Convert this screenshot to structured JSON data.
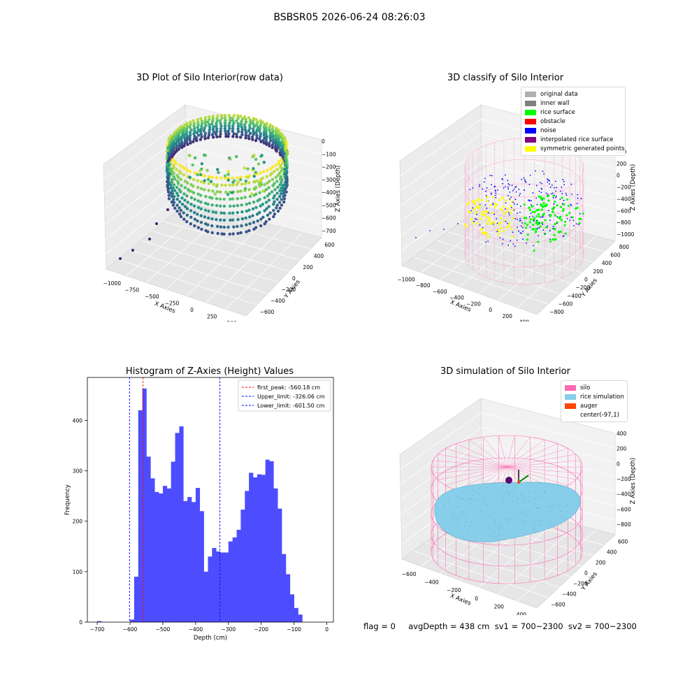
{
  "figure_title": "BSBSR05 2026-06-24 08:26:03",
  "status": {
    "text": "flag = 0     avgDepth = 438 cm  sv1 = 700~2300  sv2 = 700~2300"
  },
  "colors": {
    "histogram_bar": "#4d4dff",
    "first_peak_line": "#ff0000",
    "limit_lines": "#0000ff",
    "silo_wire": "#ff69b4",
    "rice_simulation": "#87ceeb"
  },
  "chart_data": [
    {
      "type": "scatter",
      "title": "3D Plot of Silo Interior(row data)",
      "projection": "3d",
      "colormap": "viridis",
      "xlabel": "X Axies",
      "ylabel": "Y Axies",
      "zlabel": "Z Axies (Depth)",
      "x_ticks": [
        "−1000",
        "−750",
        "−500",
        "−250",
        "0",
        "250",
        "500"
      ],
      "y_ticks": [
        "−600",
        "−400",
        "−200",
        "0",
        "200",
        "400",
        "600"
      ],
      "z_ticks": [
        "0",
        "−100",
        "−200",
        "−300",
        "−400",
        "−500",
        "−600",
        "−700"
      ],
      "xlim": [
        -1100,
        550
      ],
      "ylim": [
        -650,
        650
      ],
      "zlim": [
        -750,
        0
      ]
    },
    {
      "type": "scatter",
      "title": "3D classify of Silo Interior",
      "projection": "3d",
      "xlabel": "X Axies",
      "ylabel": "Y Axies",
      "zlabel": "Z Axies (Depth)",
      "x_ticks": [
        "−1000",
        "−800",
        "−600",
        "−400",
        "−200",
        "0",
        "200",
        "400"
      ],
      "y_ticks": [
        "−800",
        "−600",
        "−400",
        "−200",
        "0",
        "200",
        "400",
        "600",
        "800"
      ],
      "z_ticks": [
        "400",
        "200",
        "0",
        "−200",
        "−400",
        "−600",
        "−800",
        "−1000"
      ],
      "xlim": [
        -1100,
        450
      ],
      "ylim": [
        -850,
        850
      ],
      "zlim": [
        -1050,
        450
      ],
      "legend": {
        "placement": "upper right",
        "entries": [
          {
            "label": "original data",
            "color": "#b0b0b0"
          },
          {
            "label": "inner wall",
            "color": "#808080"
          },
          {
            "label": "rice surface",
            "color": "#00ff00"
          },
          {
            "label": "obstacle",
            "color": "#ff0000"
          },
          {
            "label": "noise",
            "color": "#0000ff"
          },
          {
            "label": "interpolated rice surface",
            "color": "#800080"
          },
          {
            "label": "symmetric generated points",
            "color": "#ffff00"
          }
        ]
      }
    },
    {
      "type": "bar",
      "title": "Histogram of Z-Axies (Height) Values",
      "xlabel": "Depth (cm)",
      "ylabel": "Frequency",
      "xlim": [
        -730,
        20
      ],
      "ylim": [
        0,
        485
      ],
      "x_ticks": [
        -700,
        -600,
        -500,
        -400,
        -300,
        -200,
        -100,
        0
      ],
      "x_tick_labels": [
        "−700",
        "−600",
        "−500",
        "−400",
        "−300",
        "−200",
        "−100",
        "0"
      ],
      "y_ticks": [
        0,
        100,
        200,
        300,
        400
      ],
      "bins": {
        "start": -700,
        "width": 12.5,
        "counts": [
          2,
          0,
          0,
          0,
          0,
          0,
          0,
          0,
          5,
          90,
          420,
          463,
          328,
          285,
          258,
          255,
          270,
          265,
          318,
          375,
          388,
          240,
          248,
          238,
          266,
          220,
          100,
          130,
          147,
          140,
          138,
          138,
          160,
          168,
          183,
          223,
          260,
          296,
          287,
          293,
          292,
          322,
          319,
          265,
          225,
          135,
          95,
          55,
          28,
          15
        ]
      },
      "vlines": [
        {
          "label": "first_peak: -560.18 cm",
          "x": -560.18,
          "color": "#ff0000"
        },
        {
          "label": "Upper_limit: -326.06 cm",
          "x": -326.06,
          "color": "#0000ff"
        },
        {
          "label": "Lower_limit: -601.50 cm",
          "x": -601.5,
          "color": "#0000ff"
        }
      ],
      "legend": {
        "placement": "upper right"
      }
    },
    {
      "type": "surface",
      "title": "3D simulation of Silo Interior",
      "projection": "3d",
      "xlabel": "X Axies",
      "ylabel": "Y Axies",
      "zlabel": "Z Axies (Depth)",
      "x_ticks": [
        "−600",
        "−400",
        "−200",
        "0",
        "200",
        "400"
      ],
      "y_ticks": [
        "−600",
        "−400",
        "−200",
        "0",
        "200",
        "400",
        "600"
      ],
      "z_ticks": [
        "400",
        "200",
        "0",
        "−200",
        "−400",
        "−600",
        "−800"
      ],
      "xlim": [
        -700,
        500
      ],
      "ylim": [
        -650,
        650
      ],
      "zlim": [
        -900,
        450
      ],
      "legend": {
        "placement": "upper right",
        "entries": [
          {
            "label": "silo",
            "color": "#ff69b4"
          },
          {
            "label": "rice simulation",
            "color": "#87ceeb"
          },
          {
            "label": "auger",
            "color": "#ff4500"
          },
          {
            "label": "center(-97,1)",
            "color": "#ffffff"
          }
        ]
      }
    }
  ]
}
